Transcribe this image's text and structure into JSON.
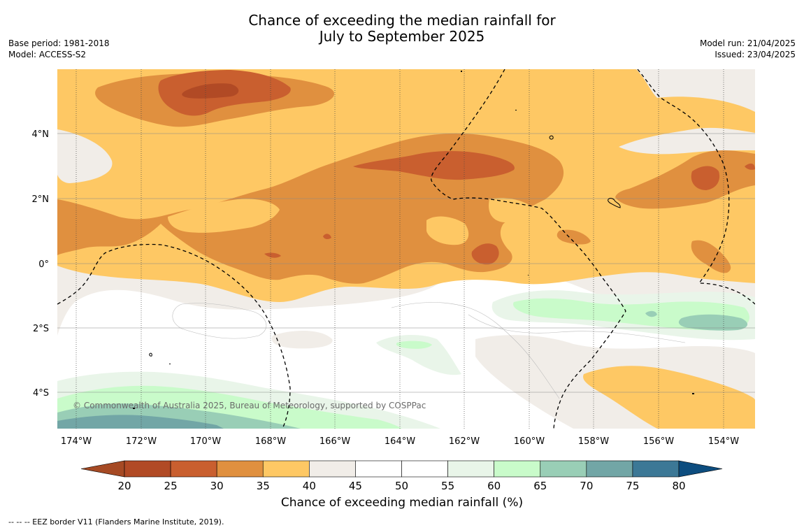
{
  "title_line1": "Chance of exceeding the median rainfall for",
  "title_line2": "July to September 2025",
  "base_period": "Base period: 1981-2018",
  "model": "Model: ACCESS-S2",
  "model_run": "Model run: 21/04/2025",
  "issued": "Issued: 23/04/2025",
  "copyright": "© Commonwealth of Australia 2025, Bureau of Meteorology, supported by COSPPac",
  "lon_labels": [
    "174°W",
    "172°W",
    "170°W",
    "168°W",
    "166°W",
    "164°W",
    "162°W",
    "160°W",
    "158°W",
    "156°W",
    "154°W"
  ],
  "lat_labels": [
    "4°N",
    "2°N",
    "0°",
    "2°S",
    "4°S"
  ],
  "colorbar": {
    "label": "Chance of exceeding median rainfall (%)",
    "ticks": [
      "20",
      "25",
      "30",
      "35",
      "40",
      "45",
      "50",
      "55",
      "60",
      "65",
      "70",
      "75",
      "80"
    ],
    "colors": [
      "#a64a24",
      "#b14a25",
      "#c95f2f",
      "#e0903f",
      "#fec864",
      "#f1ede8",
      "#ffffff",
      "#ffffff",
      "#e9f5e9",
      "#c9fbca",
      "#99ceb6",
      "#72a6a6",
      "#3c7896",
      "#0d4d7f"
    ]
  },
  "footer": "-- -- -- EEZ border V11 (Flanders Marine Institute, 2019).",
  "palette": {
    "c25_30": "#c95f2f",
    "c20_25": "#b14a25",
    "c30_35": "#e0903f",
    "c35_40": "#fec864",
    "c40_45": "#f1ede8",
    "c55_60": "#e9f5e9",
    "c60_65": "#c9fbca",
    "c65_70": "#99ceb6",
    "c70_75": "#72a6a6"
  }
}
